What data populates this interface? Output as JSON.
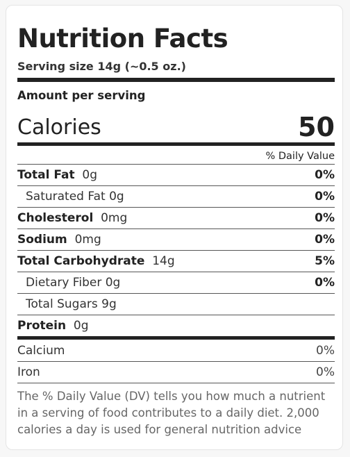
{
  "title": "Nutrition Facts",
  "serving_size": "Serving size 14g (~0.5 oz.)",
  "amount_per_serving": "Amount per serving",
  "calories": {
    "label": "Calories",
    "value": "50"
  },
  "daily_value_header": "% Daily Value",
  "nutrients": [
    {
      "name": "Total Fat",
      "amount": "0g",
      "dv": "0%"
    },
    {
      "name": "Saturated Fat 0g",
      "amount": "",
      "dv": "0%"
    },
    {
      "name": "Cholesterol",
      "amount": "0mg",
      "dv": "0%"
    },
    {
      "name": "Sodium",
      "amount": "0mg",
      "dv": "0%"
    },
    {
      "name": "Total Carbohydrate",
      "amount": "14g",
      "dv": "5%"
    },
    {
      "name": "Dietary Fiber 0g",
      "amount": "",
      "dv": "0%"
    },
    {
      "name": "Total Sugars 9g",
      "amount": "",
      "dv": ""
    },
    {
      "name": "Protein",
      "amount": "0g",
      "dv": ""
    }
  ],
  "minerals": [
    {
      "name": "Calcium",
      "dv": "0%"
    },
    {
      "name": "Iron",
      "dv": "0%"
    }
  ],
  "footnote": "The % Daily Value (DV) tells you how much a nutrient in a serving of food contributes to a daily diet. 2,000 calories a day is used for general nutrition advice"
}
